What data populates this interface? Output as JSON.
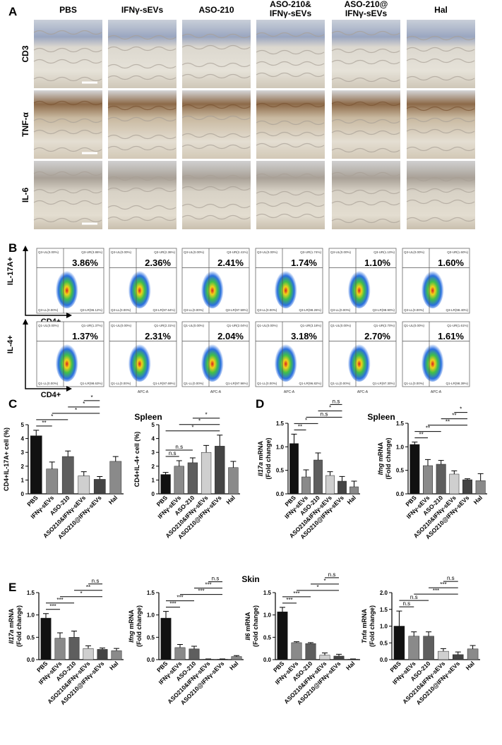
{
  "figure": {
    "panel_letters": [
      "A",
      "B",
      "C",
      "D",
      "E"
    ],
    "panel_a": {
      "columns": [
        [
          "PBS"
        ],
        [
          "IFNγ-sEVs"
        ],
        [
          "ASO-210"
        ],
        [
          "ASO-210&",
          "IFNγ-sEVs"
        ],
        [
          "ASO-210@",
          "IFNγ-sEVs"
        ],
        [
          "Hal"
        ]
      ],
      "rows": [
        "CD3",
        "TNF-α",
        "IL-6"
      ]
    },
    "panel_b": {
      "x_axis_text": "APC-A",
      "rows": [
        {
          "y_label": "IL-17A+",
          "x_label": "CD4+",
          "percent": [
            "3.86%",
            "2.36%",
            "2.41%",
            "1.74%",
            "1.10%",
            "1.60%"
          ],
          "quadrants": [
            [
              "Q3-UL(0.00%)",
              "Q3-UR(3.86%)",
              "Q3-LL(0.00%)",
              "Q3-LR(96.12%)"
            ],
            [
              "Q3-UL(0.00%)",
              "Q3-UR(2.36%)",
              "Q3-LL(0.00%)",
              "Q3-LR(97.64%)"
            ],
            [
              "Q3-UL(0.00%)",
              "Q3-UR(2.41%)",
              "Q3-LL(0.00%)",
              "Q3-LR(97.59%)"
            ],
            [
              "Q3-UL(0.00%)",
              "Q3-UR(1.74%)",
              "Q3-LL(0.00%)",
              "Q3-LR(98.26%)"
            ],
            [
              "Q3-UL(0.00%)",
              "Q3-UR(1.10%)",
              "Q3-LL(0.00%)",
              "Q3-LR(98.90%)"
            ],
            [
              "Q3-UL(0.00%)",
              "Q3-UR(1.60%)",
              "Q3-LL(0.00%)",
              "Q3-LR(98.40%)"
            ]
          ]
        },
        {
          "y_label": "IL-4+",
          "x_label": "CD4+",
          "percent": [
            "1.37%",
            "2.31%",
            "2.04%",
            "3.18%",
            "2.70%",
            "1.61%"
          ],
          "quadrants": [
            [
              "Q1-UL(0.00%)",
              "Q1-UR(1.37%)",
              "Q1-LL(0.00%)",
              "Q1-LR(98.63%)"
            ],
            [
              "Q1-UL(0.00%)",
              "Q1-UR(2.31%)",
              "Q1-LL(0.00%)",
              "Q1-LR(97.69%)"
            ],
            [
              "Q1-UL(0.00%)",
              "Q1-UR(2.04%)",
              "Q1-LL(0.00%)",
              "Q1-LR(97.96%)"
            ],
            [
              "Q1-UL(0.00%)",
              "Q1-UR(3.18%)",
              "Q1-LL(0.00%)",
              "Q1-LR(96.82%)"
            ],
            [
              "Q1-UL(0.00%)",
              "Q1-UR(2.70%)",
              "Q1-LL(0.00%)",
              "Q1-LR(97.30%)"
            ],
            [
              "Q1-UL(0.00%)",
              "Q1-UR(1.61%)",
              "Q1-LL(0.00%)",
              "Q1-LR(98.39%)"
            ]
          ]
        }
      ]
    },
    "section_titles": [
      "Spleen",
      "Spleen",
      "Skin"
    ]
  },
  "chart_data": [
    {
      "type": "bar",
      "ylabel": [
        "CD4+IL-17A+ cell (%)"
      ],
      "categories": [
        "PBS",
        "IFNγ-sEVs",
        "ASO-210",
        "ASO210&IFNγ-sEVs",
        "ASO210@IFNγ-sEVs",
        "Hal"
      ],
      "values": [
        4.2,
        1.8,
        2.7,
        1.3,
        1.05,
        2.35
      ],
      "errors": [
        0.4,
        0.5,
        0.4,
        0.3,
        0.2,
        0.35
      ],
      "colors": [
        "#111111",
        "#8a8a8a",
        "#5e5e5e",
        "#cfcfcf",
        "#444444",
        "#8a8a8a"
      ],
      "ylim": [
        0,
        5
      ],
      "yticks": [
        0,
        1,
        2,
        3,
        4,
        5
      ],
      "significance": [
        {
          "label": "**",
          "from": 0,
          "to": 1
        },
        {
          "label": "*",
          "from": 0,
          "to": 2
        },
        {
          "label": "*",
          "from": 1,
          "to": 4
        },
        {
          "label": "*",
          "from": 2,
          "to": 4
        },
        {
          "label": "*",
          "from": 3,
          "to": 4
        }
      ]
    },
    {
      "type": "bar",
      "ylabel": [
        "CD4+IL-4+ cell (%)"
      ],
      "categories": [
        "PBS",
        "IFNγ-sEVs",
        "ASO-210",
        "ASO210&IFNγ-sEVs",
        "ASO210@IFNγ-sEVs",
        "Hal"
      ],
      "values": [
        1.4,
        2.0,
        2.25,
        3.0,
        3.45,
        1.9
      ],
      "errors": [
        0.15,
        0.4,
        0.35,
        0.5,
        0.8,
        0.45
      ],
      "colors": [
        "#111111",
        "#8a8a8a",
        "#5e5e5e",
        "#cfcfcf",
        "#444444",
        "#8a8a8a"
      ],
      "ylim": [
        0,
        5
      ],
      "yticks": [
        0,
        1,
        2,
        3,
        4,
        5
      ],
      "significance": [
        {
          "label": "n.s",
          "from": 0,
          "to": 1
        },
        {
          "label": "n.s",
          "from": 0,
          "to": 2
        },
        {
          "label": "*",
          "from": 0,
          "to": 4
        },
        {
          "label": "*",
          "from": 1,
          "to": 4
        },
        {
          "label": "*",
          "from": 2,
          "to": 4
        }
      ]
    },
    {
      "type": "bar",
      "ylabel": [
        "Il17a",
        " mRNA",
        "(Fold change)"
      ],
      "categories": [
        "PBS",
        "IFNγ-sEVs",
        "ASO-210",
        "ASO210&IFNγ-sEVs",
        "ASO210@IFNγ-sEVs",
        "Hal"
      ],
      "values": [
        1.07,
        0.36,
        0.72,
        0.39,
        0.27,
        0.15
      ],
      "errors": [
        0.2,
        0.15,
        0.15,
        0.08,
        0.1,
        0.12
      ],
      "colors": [
        "#111111",
        "#8a8a8a",
        "#5e5e5e",
        "#cfcfcf",
        "#444444",
        "#8a8a8a"
      ],
      "ylim": [
        0,
        1.5
      ],
      "yticks": [
        {
          "value": 0,
          "label": "0.0"
        },
        0.5,
        {
          "value": 1,
          "label": "1.0"
        },
        1.5
      ],
      "significance": [
        {
          "label": "**",
          "from": 0,
          "to": 1
        },
        {
          "label": "*",
          "from": 0,
          "to": 2
        },
        {
          "label": "n.s",
          "from": 1,
          "to": 4
        },
        {
          "label": "*",
          "from": 2,
          "to": 4
        },
        {
          "label": "n.s",
          "from": 3,
          "to": 4
        }
      ]
    },
    {
      "type": "bar",
      "ylabel": [
        "Ifng",
        " mRNA",
        "(Fold change)"
      ],
      "categories": [
        "PBS",
        "IFNγ-sEVs",
        "ASO-210",
        "ASO210&IFNγ-sEVs",
        "ASO210@IFNγ-sEVs",
        "Hal"
      ],
      "values": [
        1.05,
        0.6,
        0.63,
        0.42,
        0.3,
        0.28
      ],
      "errors": [
        0.05,
        0.13,
        0.08,
        0.07,
        0.02,
        0.15
      ],
      "colors": [
        "#111111",
        "#8a8a8a",
        "#5e5e5e",
        "#cfcfcf",
        "#444444",
        "#8a8a8a"
      ],
      "ylim": [
        0,
        1.5
      ],
      "yticks": [
        {
          "value": 0,
          "label": "0.0"
        },
        0.5,
        {
          "value": 1,
          "label": "1.0"
        },
        1.5
      ],
      "significance": [
        {
          "label": "**",
          "from": 0,
          "to": 1
        },
        {
          "label": "**",
          "from": 0,
          "to": 2
        },
        {
          "label": "**",
          "from": 1,
          "to": 4
        },
        {
          "label": "**",
          "from": 2,
          "to": 4
        },
        {
          "label": "*",
          "from": 3,
          "to": 4
        }
      ]
    },
    {
      "type": "bar",
      "ylabel": [
        "Il17a",
        " mRNA",
        "(Fold change)"
      ],
      "categories": [
        "PBS",
        "IFNγ-sEVs",
        "ASO-210",
        "ASO210&IFNγ-sEVs",
        "ASO210@IFNγ-sEVs",
        "Hal"
      ],
      "values": [
        0.93,
        0.48,
        0.5,
        0.25,
        0.23,
        0.2
      ],
      "errors": [
        0.1,
        0.12,
        0.14,
        0.06,
        0.03,
        0.05
      ],
      "colors": [
        "#111111",
        "#8a8a8a",
        "#5e5e5e",
        "#cfcfcf",
        "#444444",
        "#8a8a8a"
      ],
      "ylim": [
        0,
        1.5
      ],
      "yticks": [
        {
          "value": 0,
          "label": "0.0"
        },
        0.5,
        {
          "value": 1,
          "label": "1.0"
        },
        1.5
      ],
      "significance": [
        {
          "label": "***",
          "from": 0,
          "to": 1
        },
        {
          "label": "***",
          "from": 0,
          "to": 2
        },
        {
          "label": "*",
          "from": 1,
          "to": 4
        },
        {
          "label": "**",
          "from": 2,
          "to": 4
        },
        {
          "label": "n.s",
          "from": 3,
          "to": 4
        }
      ]
    },
    {
      "type": "bar",
      "ylabel": [
        "Ifng",
        " mRNA",
        "(Fold change)"
      ],
      "categories": [
        "PBS",
        "IFNγ-sEVs",
        "ASO-210",
        "ASO210&IFNγ-sEVs",
        "ASO210@IFNγ-sEVs",
        "Hal"
      ],
      "values": [
        0.93,
        0.27,
        0.24,
        0.01,
        0.01,
        0.07
      ],
      "errors": [
        0.15,
        0.07,
        0.06,
        0.005,
        0.005,
        0.02
      ],
      "colors": [
        "#111111",
        "#8a8a8a",
        "#5e5e5e",
        "#cfcfcf",
        "#444444",
        "#8a8a8a"
      ],
      "ylim": [
        0,
        1.5
      ],
      "yticks": [
        {
          "value": 0,
          "label": "0.0"
        },
        0.5,
        {
          "value": 1,
          "label": "1.0"
        },
        1.5
      ],
      "significance": [
        {
          "label": "***",
          "from": 0,
          "to": 1
        },
        {
          "label": "***",
          "from": 0,
          "to": 2
        },
        {
          "label": "***",
          "from": 1,
          "to": 4
        },
        {
          "label": "***",
          "from": 2,
          "to": 4
        },
        {
          "label": "n.s",
          "from": 3,
          "to": 4
        }
      ]
    },
    {
      "type": "bar",
      "ylabel": [
        "Il6",
        " mRNA",
        "(Fold change)"
      ],
      "categories": [
        "PBS",
        "IFNγ-sEVs",
        "ASO-210",
        "ASO210&IFNγ-sEVs",
        "ASO210@IFNγ-sEVs",
        "Hal"
      ],
      "values": [
        1.07,
        0.38,
        0.36,
        0.1,
        0.08,
        0.01
      ],
      "errors": [
        0.1,
        0.02,
        0.02,
        0.05,
        0.04,
        0.005
      ],
      "colors": [
        "#111111",
        "#8a8a8a",
        "#5e5e5e",
        "#cfcfcf",
        "#444444",
        "#8a8a8a"
      ],
      "ylim": [
        0,
        1.5
      ],
      "yticks": [
        {
          "value": 0,
          "label": "0.0"
        },
        0.5,
        {
          "value": 1,
          "label": "1.0"
        },
        1.5
      ],
      "significance": [
        {
          "label": "***",
          "from": 0,
          "to": 1
        },
        {
          "label": "***",
          "from": 0,
          "to": 2
        },
        {
          "label": "*",
          "from": 1,
          "to": 4
        },
        {
          "label": "*",
          "from": 2,
          "to": 4
        },
        {
          "label": "n.s",
          "from": 3,
          "to": 4
        }
      ]
    },
    {
      "type": "bar",
      "ylabel": [
        "Tnfa",
        " mRNA",
        "(Fold change)"
      ],
      "categories": [
        "PBS",
        "IFNγ-sEVs",
        "ASO-210",
        "ASO210&IFNγ-sEVs",
        "ASO210@IFNγ-sEVs",
        "Hal"
      ],
      "values": [
        1.0,
        0.7,
        0.7,
        0.25,
        0.15,
        0.32
      ],
      "errors": [
        0.45,
        0.13,
        0.13,
        0.08,
        0.08,
        0.1
      ],
      "colors": [
        "#111111",
        "#8a8a8a",
        "#5e5e5e",
        "#cfcfcf",
        "#444444",
        "#8a8a8a"
      ],
      "ylim": [
        0,
        2
      ],
      "yticks": [
        {
          "value": 0,
          "label": "0.0"
        },
        0.5,
        {
          "value": 1,
          "label": "1.0"
        },
        1.5,
        {
          "value": 2,
          "label": "2.0"
        }
      ],
      "significance": [
        {
          "label": "n.s",
          "from": 0,
          "to": 1
        },
        {
          "label": "n.s",
          "from": 0,
          "to": 2
        },
        {
          "label": "***",
          "from": 1,
          "to": 4
        },
        {
          "label": "***",
          "from": 2,
          "to": 4
        },
        {
          "label": "n.s",
          "from": 3,
          "to": 4
        }
      ]
    }
  ]
}
